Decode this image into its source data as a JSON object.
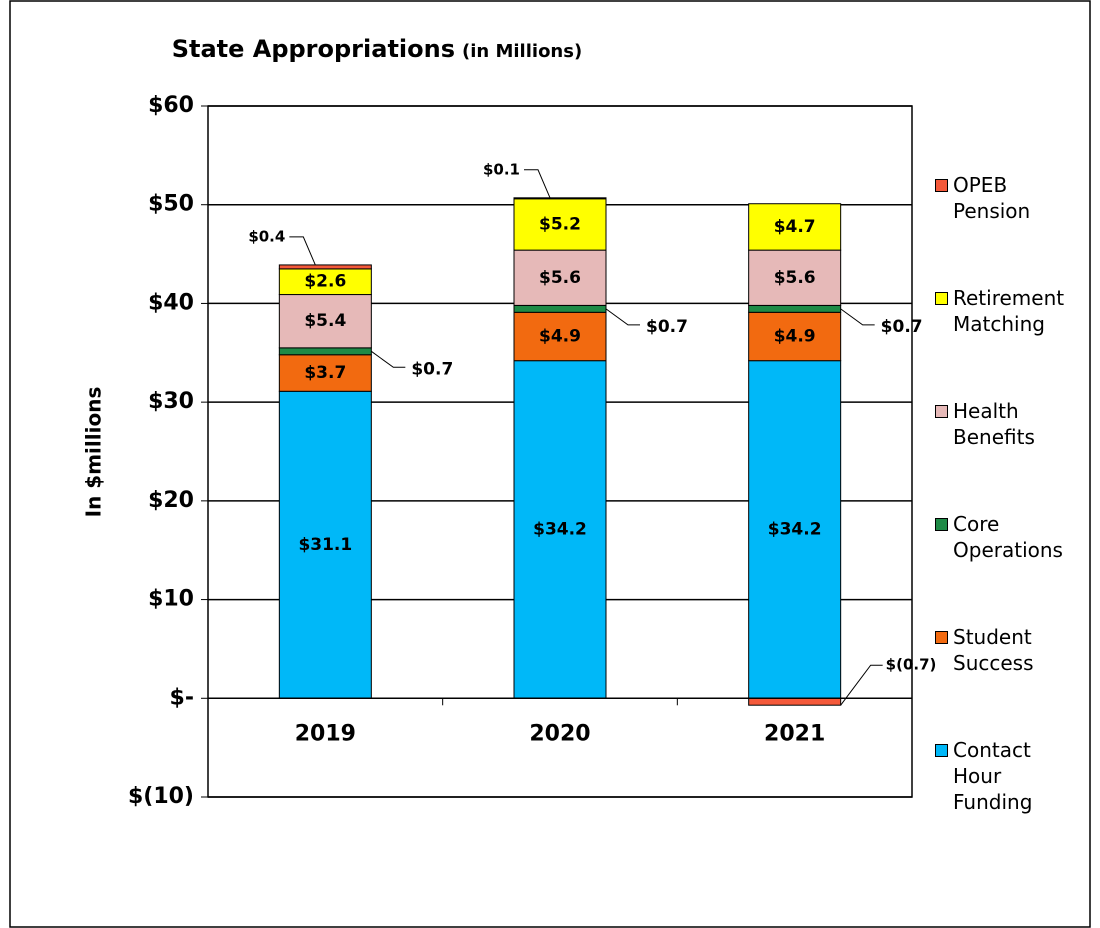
{
  "chart_data": {
    "type": "stacked_bar",
    "title": "State Appropriations",
    "subtitle": "(in Millions)",
    "y_axis_label": "In $millions",
    "categories": [
      "2019",
      "2020",
      "2021"
    ],
    "series": [
      {
        "name": "Contact Hour Funding",
        "color": "#00b8f8",
        "values": [
          31.1,
          34.2,
          34.2
        ],
        "value_labels": [
          "$31.1",
          "$34.2",
          "$34.2"
        ]
      },
      {
        "name": "Student Success",
        "color": "#f26a10",
        "values": [
          3.7,
          4.9,
          4.9
        ],
        "value_labels": [
          "$3.7",
          "$4.9",
          "$4.9"
        ]
      },
      {
        "name": "Core Operations",
        "color": "#1e8a46",
        "values": [
          0.7,
          0.7,
          0.7
        ],
        "value_labels": [
          "$0.7",
          "$0.7",
          "$0.7"
        ]
      },
      {
        "name": "Health Benefits",
        "color": "#e6b9b8",
        "values": [
          5.4,
          5.6,
          5.6
        ],
        "value_labels": [
          "$5.4",
          "$5.6",
          "$5.6"
        ]
      },
      {
        "name": "Retirement Matching",
        "color": "#ffff00",
        "values": [
          2.6,
          5.2,
          4.7
        ],
        "value_labels": [
          "$2.6",
          "$5.2",
          "$4.7"
        ]
      },
      {
        "name": "OPEB Pension",
        "color": "#f4593a",
        "values": [
          0.4,
          0.1,
          -0.7
        ],
        "value_labels": [
          "$0.4",
          "$0.1",
          "$(0.7)"
        ]
      }
    ],
    "ylim": [
      -10,
      60
    ],
    "yticks": [
      {
        "value": -10,
        "label": "$(10)"
      },
      {
        "value": 0,
        "label": "$-"
      },
      {
        "value": 10,
        "label": "$10"
      },
      {
        "value": 20,
        "label": "$20"
      },
      {
        "value": 30,
        "label": "$30"
      },
      {
        "value": 40,
        "label": "$40"
      },
      {
        "value": 50,
        "label": "$50"
      },
      {
        "value": 60,
        "label": "$60"
      }
    ],
    "grid": true,
    "legend": "right"
  }
}
